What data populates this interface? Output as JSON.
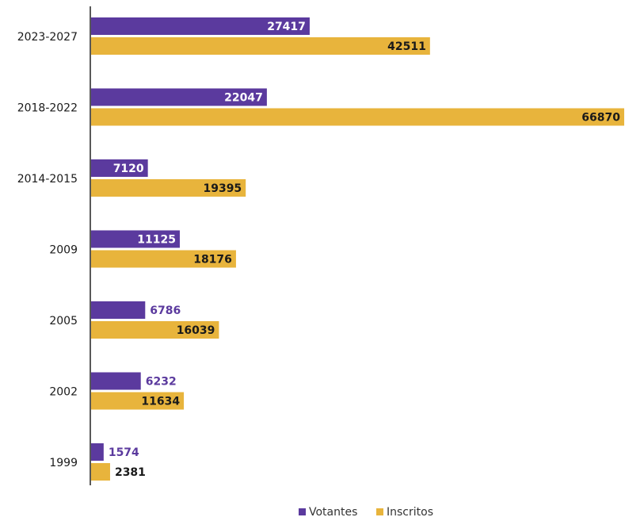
{
  "chart_data": {
    "type": "bar",
    "orientation": "horizontal",
    "categories": [
      "2023-2027",
      "2018-2022",
      "2014-2015",
      "2009",
      "2005",
      "2002",
      "1999"
    ],
    "series": [
      {
        "name": "Votantes",
        "color": "#5b3a9e",
        "values": [
          27417,
          22047,
          7120,
          11125,
          6786,
          6232,
          1574
        ]
      },
      {
        "name": "Inscritos",
        "color": "#e8b43c",
        "values": [
          42511,
          66870,
          19395,
          18176,
          16039,
          11634,
          2381
        ]
      }
    ],
    "xlim": [
      0,
      66870
    ],
    "grid": false,
    "legend_position": "bottom-right"
  }
}
